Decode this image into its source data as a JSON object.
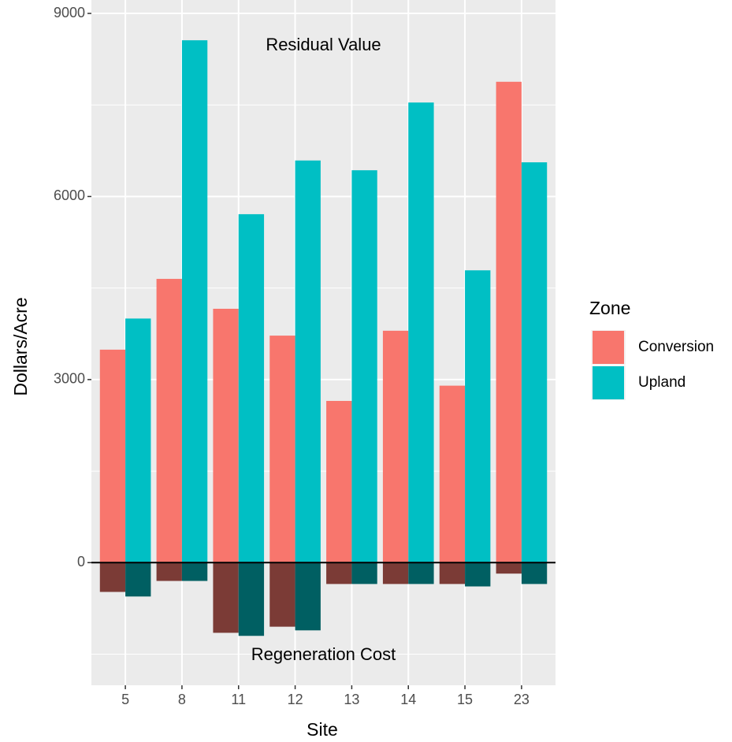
{
  "chart_data": {
    "type": "bar",
    "x_label": "Site",
    "y_label": "Dollars/Acre",
    "categories": [
      "5",
      "8",
      "11",
      "12",
      "13",
      "14",
      "15",
      "23"
    ],
    "series": [
      {
        "name": "Conversion",
        "color": "#F8766D",
        "cost_color": "#7B3B36",
        "values": [
          3490,
          4650,
          4160,
          3720,
          2650,
          3800,
          2900,
          7880
        ],
        "costs": [
          -480,
          -300,
          -1150,
          -1050,
          -350,
          -350,
          -350,
          -180
        ]
      },
      {
        "name": "Upland",
        "color": "#00BFC4",
        "cost_color": "#005F62",
        "values": [
          4000,
          8560,
          5710,
          6590,
          6430,
          7540,
          4790,
          6560
        ],
        "costs": [
          -555,
          -300,
          -1200,
          -1110,
          -350,
          -350,
          -390,
          -350
        ]
      }
    ],
    "annotations": [
      "Residual Value",
      "Regeneration Cost"
    ],
    "hline": 0,
    "ylim": [
      -2010,
      9220
    ],
    "yticks": [
      0,
      3000,
      6000,
      9000
    ],
    "minor_yticks": [
      -1500,
      1500,
      4500,
      7500
    ],
    "grid": true,
    "legend_title": "Zone",
    "legend_position": "right"
  }
}
